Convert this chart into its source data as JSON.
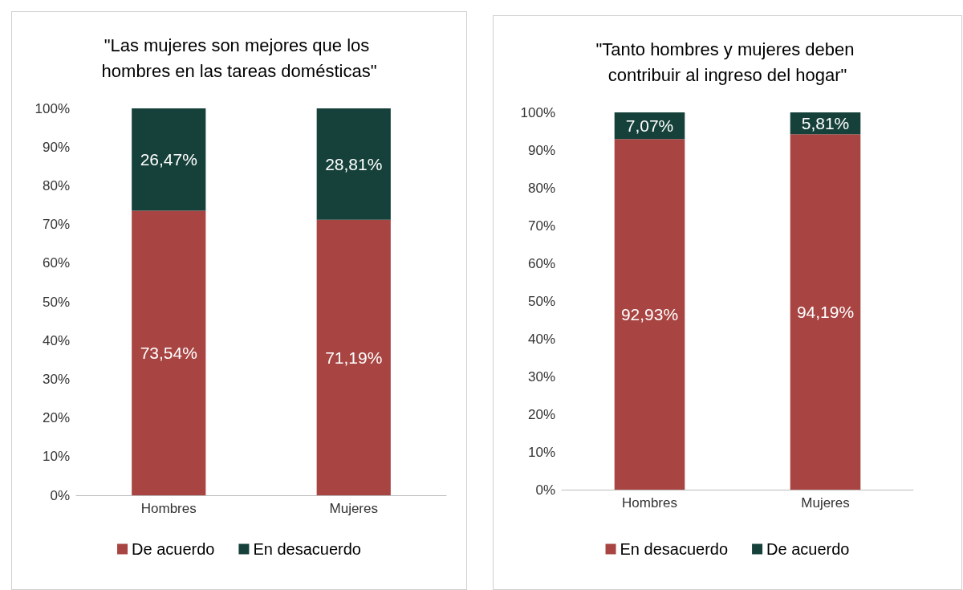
{
  "chart_data": [
    {
      "type": "bar",
      "title": "\"Las mujeres son mejores que los hombres en las tareas domésticas\"",
      "categories": [
        "Hombres",
        "Mujeres"
      ],
      "stacked": true,
      "legend": "bottom",
      "grid": false,
      "ylim": [
        0,
        100
      ],
      "yticks": [
        {
          "value": 0,
          "label": "0%"
        },
        {
          "value": 10,
          "label": "10%"
        },
        {
          "value": 20,
          "label": "20%"
        },
        {
          "value": 30,
          "label": "30%"
        },
        {
          "value": 40,
          "label": "40%"
        },
        {
          "value": 50,
          "label": "50%"
        },
        {
          "value": 60,
          "label": "60%"
        },
        {
          "value": 70,
          "label": "70%"
        },
        {
          "value": 80,
          "label": "80%"
        },
        {
          "value": 90,
          "label": "90%"
        },
        {
          "value": 100,
          "label": "100%"
        }
      ],
      "series": [
        {
          "name": "De acuerdo",
          "color": "#a84442",
          "values": [
            73.54,
            71.19
          ],
          "value_labels": [
            "73,54%",
            "71,19%"
          ]
        },
        {
          "name": "En desacuerdo",
          "color": "#16413a",
          "values": [
            26.47,
            28.81
          ],
          "value_labels": [
            "26,47%",
            "28,81%"
          ]
        }
      ]
    },
    {
      "type": "bar",
      "title": "\"Tanto hombres y mujeres deben contribuir al ingreso del hogar\"",
      "categories": [
        "Hombres",
        "Mujeres"
      ],
      "stacked": true,
      "legend": "bottom",
      "grid": false,
      "ylim": [
        0,
        100
      ],
      "yticks": [
        {
          "value": 0,
          "label": "0%"
        },
        {
          "value": 10,
          "label": "10%"
        },
        {
          "value": 20,
          "label": "20%"
        },
        {
          "value": 30,
          "label": "30%"
        },
        {
          "value": 40,
          "label": "40%"
        },
        {
          "value": 50,
          "label": "50%"
        },
        {
          "value": 60,
          "label": "60%"
        },
        {
          "value": 70,
          "label": "70%"
        },
        {
          "value": 80,
          "label": "80%"
        },
        {
          "value": 90,
          "label": "90%"
        },
        {
          "value": 100,
          "label": "100%"
        }
      ],
      "series": [
        {
          "name": "En desacuerdo",
          "color": "#a84442",
          "values": [
            92.93,
            94.19
          ],
          "value_labels": [
            "92,93%",
            "94,19%"
          ]
        },
        {
          "name": "De acuerdo",
          "color": "#16413a",
          "values": [
            7.07,
            5.81
          ],
          "value_labels": [
            "7,07%",
            "5,81%"
          ]
        }
      ]
    }
  ]
}
